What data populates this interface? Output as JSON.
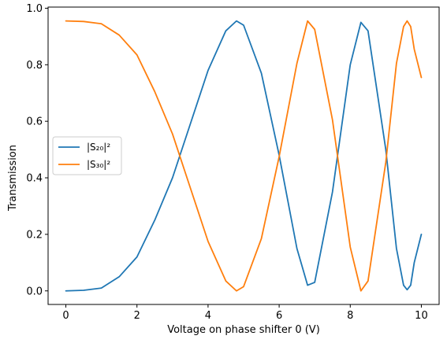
{
  "chart_data": {
    "type": "line",
    "title": "",
    "xlabel": "Voltage on phase shifter 0 (V)",
    "ylabel": "Transmission",
    "xlim": [
      -0.5,
      10.5
    ],
    "ylim": [
      -0.048,
      1.004
    ],
    "xticks": [
      0,
      2,
      4,
      6,
      8,
      10
    ],
    "yticks": [
      0.0,
      0.2,
      0.4,
      0.6,
      0.8,
      1.0
    ],
    "xtick_labels": [
      "0",
      "2",
      "4",
      "6",
      "8",
      "10"
    ],
    "ytick_labels": [
      "0.0",
      "0.2",
      "0.4",
      "0.6",
      "0.8",
      "1.0"
    ],
    "grid": false,
    "legend_position": "center-left",
    "series": [
      {
        "name": "|S₂₀|²",
        "color": "#1f77b4",
        "x": [
          0.0,
          0.5,
          1.0,
          1.5,
          2.0,
          2.5,
          3.0,
          3.5,
          4.0,
          4.5,
          4.8,
          5.0,
          5.5,
          6.0,
          6.5,
          6.8,
          7.0,
          7.5,
          8.0,
          8.3,
          8.5,
          9.0,
          9.3,
          9.5,
          9.6,
          9.7,
          9.8,
          10.0
        ],
        "y": [
          0.0,
          0.002,
          0.01,
          0.05,
          0.12,
          0.25,
          0.4,
          0.59,
          0.78,
          0.92,
          0.955,
          0.94,
          0.77,
          0.48,
          0.15,
          0.02,
          0.03,
          0.35,
          0.8,
          0.95,
          0.92,
          0.5,
          0.15,
          0.02,
          0.004,
          0.02,
          0.1,
          0.2
        ]
      },
      {
        "name": "|S₃₀|²",
        "color": "#ff7f0e",
        "x": [
          0.0,
          0.5,
          1.0,
          1.5,
          2.0,
          2.5,
          3.0,
          3.5,
          4.0,
          4.5,
          4.8,
          5.0,
          5.5,
          6.0,
          6.5,
          6.8,
          7.0,
          7.5,
          8.0,
          8.3,
          8.5,
          9.0,
          9.3,
          9.5,
          9.6,
          9.7,
          9.8,
          10.0
        ],
        "y": [
          0.955,
          0.953,
          0.945,
          0.905,
          0.835,
          0.705,
          0.555,
          0.365,
          0.175,
          0.035,
          0.0,
          0.015,
          0.185,
          0.475,
          0.805,
          0.955,
          0.925,
          0.605,
          0.155,
          0.0,
          0.035,
          0.455,
          0.805,
          0.935,
          0.955,
          0.935,
          0.855,
          0.755
        ]
      }
    ]
  }
}
